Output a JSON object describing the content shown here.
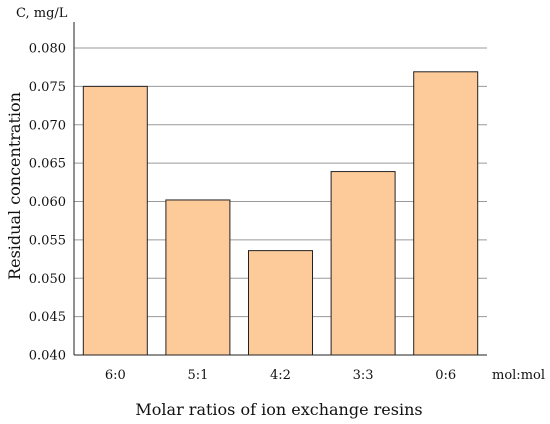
{
  "chart_data": {
    "type": "bar",
    "categories": [
      "6:0",
      "5:1",
      "4:2",
      "3:3",
      "0:6"
    ],
    "values": [
      0.075,
      0.0602,
      0.0536,
      0.0639,
      0.0769
    ],
    "ylim": [
      0.04,
      0.08
    ],
    "yticks": [
      "0.040",
      "0.045",
      "0.050",
      "0.055",
      "0.060",
      "0.065",
      "0.070",
      "0.075",
      "0.080"
    ],
    "ytick_values": [
      0.04,
      0.045,
      0.05,
      0.055,
      0.06,
      0.065,
      0.07,
      0.075,
      0.08
    ],
    "y_unit": "C, mg/L",
    "ylabel": "Residual concentration",
    "x_unit": "mol:mol",
    "xlabel": "Molar ratios of ion exchange resins",
    "grid": "horizontal",
    "bar_color": "#FDCB9A",
    "bar_edge_color": "#222222",
    "grid_color": "#9a9a9a"
  }
}
